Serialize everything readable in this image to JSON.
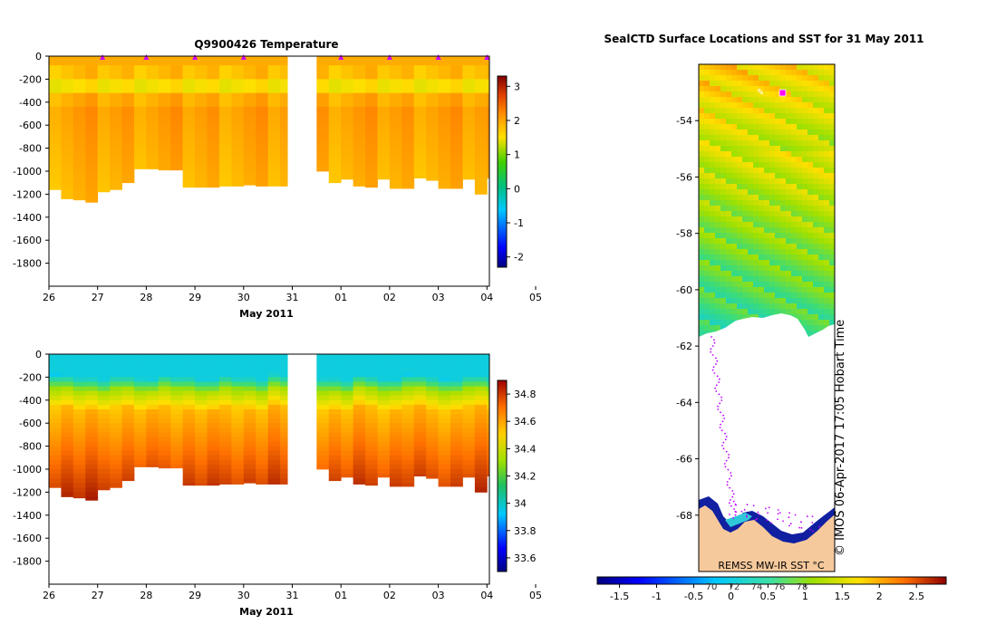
{
  "chart_data": [
    {
      "type": "heatmap",
      "title": "Q9900426  Temperature",
      "xlabel": "May 2011",
      "ylabel": "",
      "x_ticks": [
        "26",
        "27",
        "28",
        "29",
        "30",
        "31",
        "01",
        "02",
        "03",
        "04",
        "05"
      ],
      "y_ticks": [
        0,
        -200,
        -400,
        -600,
        -800,
        -1000,
        -1200,
        -1400,
        -1600,
        -1800
      ],
      "ylim": [
        -2000,
        0
      ],
      "colorbar": {
        "ticks": [
          -2,
          -1,
          0,
          1,
          2,
          3
        ],
        "range": [
          -2.3,
          3.3
        ]
      },
      "profiles": {
        "times": [
          26.0,
          26.25,
          26.5,
          26.75,
          27.0,
          27.25,
          27.5,
          27.75,
          28.0,
          28.25,
          28.5,
          28.75,
          29.0,
          29.25,
          29.5,
          29.75,
          30.0,
          30.25,
          30.5,
          30.75,
          31.5,
          31.75,
          32.0,
          32.25,
          32.5,
          32.75,
          33.0,
          33.25,
          33.5,
          33.75,
          34.0,
          34.25,
          34.5,
          34.75,
          35.0
        ],
        "max_depth": [
          -1160,
          -1240,
          -1250,
          -1270,
          -1180,
          -1160,
          -1100,
          -980,
          -980,
          -990,
          -990,
          -1140,
          -1140,
          -1140,
          -1130,
          -1130,
          -1120,
          -1130,
          -1130,
          -1130,
          -1000,
          -1100,
          -1070,
          -1130,
          -1140,
          -1070,
          -1150,
          -1150,
          -1060,
          -1080,
          -1150,
          -1150,
          -1070,
          -1200,
          -1060
        ]
      },
      "gap_between": [
        30.9,
        31.45
      ],
      "surface_markers": [
        27.1,
        28.0,
        29.0,
        30.0,
        32.0,
        33.0,
        34.0,
        35.0
      ]
    },
    {
      "type": "heatmap",
      "title": "",
      "xlabel": "May 2011",
      "ylabel": "",
      "x_ticks": [
        "26",
        "27",
        "28",
        "29",
        "30",
        "31",
        "01",
        "02",
        "03",
        "04",
        "05"
      ],
      "y_ticks": [
        0,
        -200,
        -400,
        -600,
        -800,
        -1000,
        -1200,
        -1400,
        -1600,
        -1800
      ],
      "ylim": [
        -2000,
        0
      ],
      "colorbar": {
        "ticks": [
          33.6,
          33.8,
          34,
          34.2,
          34.4,
          34.6,
          34.8
        ],
        "range": [
          33.5,
          34.9
        ]
      }
    },
    {
      "type": "heatmap",
      "title": "SealCTD Surface Locations and SST for 31 May 2011",
      "y_ticks": [
        -54,
        -56,
        -58,
        -60,
        -62,
        -64,
        -66,
        -68
      ],
      "ylim": [
        -70,
        -52
      ],
      "colorbar": {
        "ticks": [
          -1.5,
          -1,
          -0.5,
          0,
          0.5,
          1,
          1.5,
          2,
          2.5
        ],
        "range": [
          -1.8,
          2.9
        ]
      },
      "colorbar_ghost_ticks": [
        "70",
        "72",
        "74",
        "76",
        "78"
      ],
      "sst_label": "REMSS MW-IR SST °C",
      "side_label": "© IMOS 06-Apr-2017 17:05 Hobart Time"
    }
  ]
}
